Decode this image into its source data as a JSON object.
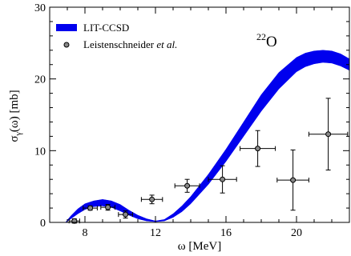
{
  "chart_data": {
    "type": "line",
    "xlabel": "ω [MeV]",
    "ylabel_main": "σ",
    "ylabel_sub": "γ",
    "ylabel_tail": "(ω) [mb]",
    "xlim": [
      6,
      23
    ],
    "ylim": [
      0,
      30
    ],
    "xticks": [
      8,
      12,
      16,
      20
    ],
    "yticks": [
      0,
      10,
      20,
      30
    ],
    "xminor": [
      7,
      9,
      10,
      11,
      13,
      14,
      15,
      17,
      18,
      19,
      21,
      22
    ],
    "yminor": [
      2,
      4,
      6,
      8,
      12,
      14,
      16,
      18,
      22,
      24,
      26,
      28
    ],
    "grid": false,
    "legend_position": "top-left",
    "annotation_mass": "22",
    "annotation_elem": "O",
    "band": {
      "name": "LIT-CCSD",
      "color": "#0000ee",
      "x": [
        6.9,
        7.2,
        7.6,
        8.0,
        8.5,
        9.0,
        9.5,
        10.0,
        10.5,
        11.0,
        11.5,
        12.0,
        12.5,
        13.0,
        13.5,
        14.0,
        15.0,
        16.0,
        17.0,
        18.0,
        19.0,
        20.0,
        20.5,
        21.0,
        21.5,
        22.0,
        22.5,
        23.0
      ],
      "lower": [
        0.0,
        0.5,
        1.2,
        1.8,
        2.2,
        2.3,
        2.1,
        1.6,
        1.0,
        0.5,
        0.2,
        0.1,
        0.2,
        0.7,
        1.5,
        2.6,
        5.3,
        8.5,
        12.0,
        15.5,
        18.6,
        21.0,
        21.7,
        22.1,
        22.3,
        22.2,
        21.8,
        21.2
      ],
      "upper": [
        0.0,
        0.9,
        1.9,
        2.6,
        3.0,
        3.2,
        3.0,
        2.5,
        1.7,
        1.0,
        0.5,
        0.2,
        0.4,
        1.2,
        2.3,
        3.6,
        6.7,
        10.2,
        14.0,
        17.8,
        20.9,
        23.0,
        23.6,
        23.9,
        24.0,
        23.9,
        23.5,
        22.8
      ]
    },
    "series": [
      {
        "name": "Leistenschneider",
        "name_italic": "et al.",
        "color": "#888888",
        "points": [
          {
            "x": 7.4,
            "y": 0.2,
            "xerr": 0.3,
            "yerr": 0.3
          },
          {
            "x": 8.3,
            "y": 2.0,
            "xerr": 0.4,
            "yerr": 0.3
          },
          {
            "x": 9.3,
            "y": 2.1,
            "xerr": 0.4,
            "yerr": 0.4
          },
          {
            "x": 10.3,
            "y": 1.1,
            "xerr": 0.4,
            "yerr": 0.5
          },
          {
            "x": 11.8,
            "y": 3.2,
            "xerr": 0.6,
            "yerr": 0.6
          },
          {
            "x": 13.8,
            "y": 5.1,
            "xerr": 0.7,
            "yerr": 0.9
          },
          {
            "x": 15.8,
            "y": 6.0,
            "xerr": 0.8,
            "yerr": 1.9
          },
          {
            "x": 17.8,
            "y": 10.3,
            "xerr": 1.0,
            "yerr": 2.5
          },
          {
            "x": 19.8,
            "y": 5.9,
            "xerr": 0.9,
            "yerr": 4.2
          },
          {
            "x": 21.8,
            "y": 12.3,
            "xerr": 1.1,
            "yerr": 5.0
          }
        ]
      }
    ]
  }
}
